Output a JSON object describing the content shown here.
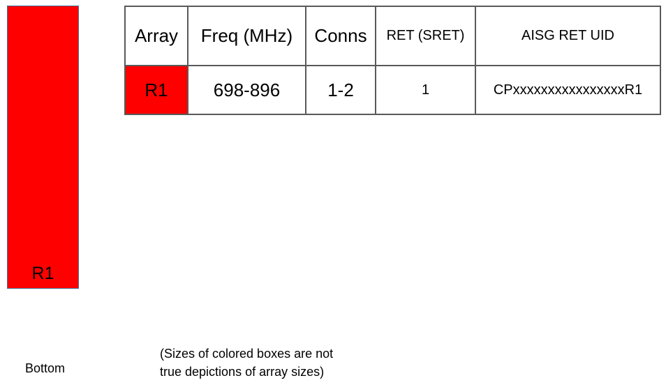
{
  "diagram": {
    "array_box": {
      "label": "R1",
      "fill_color": "#ff0000",
      "border_color": "#41719c"
    },
    "bottom_label": "Bottom",
    "caption_line1": "(Sizes of colored boxes are not",
    "caption_line2": "true depictions of array sizes)"
  },
  "table": {
    "headers": [
      "Array",
      "Freq (MHz)",
      "Conns",
      "RET (SRET)",
      "AISG RET UID"
    ],
    "rows": [
      {
        "array": "R1",
        "array_color": "#ff0000",
        "freq": "698-896",
        "conns": "1-2",
        "ret": "1",
        "aisg_ret_uid": "CPxxxxxxxxxxxxxxxxR1"
      }
    ]
  },
  "colors": {
    "red": "#ff0000",
    "table_border": "#595959",
    "box_border": "#41719c",
    "text": "#000000"
  }
}
